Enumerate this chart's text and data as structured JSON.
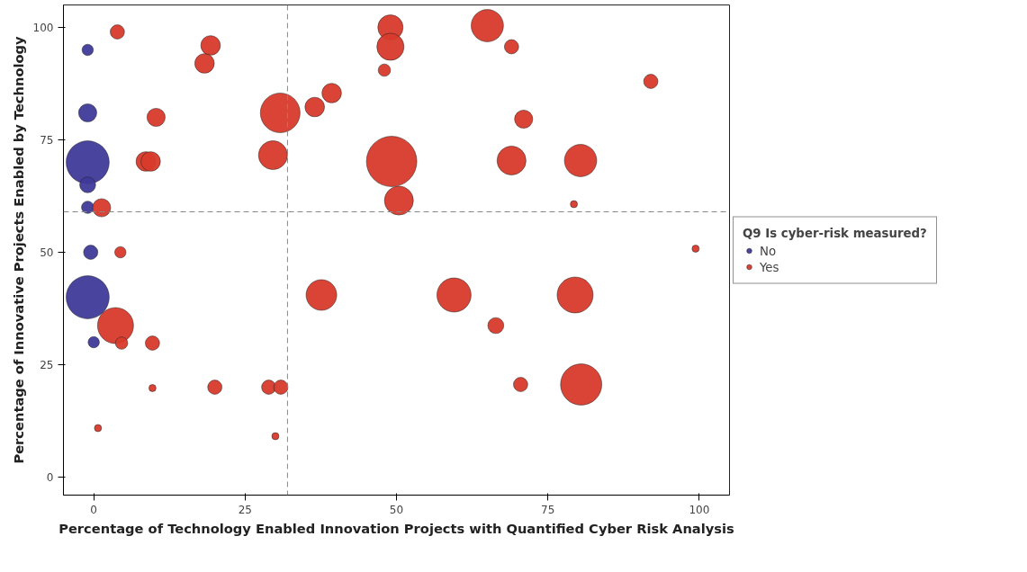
{
  "chart_data": {
    "type": "bubble",
    "xlabel": "Percentage of Technology Enabled Innovation Projects with Quantified Cyber Risk Analysis",
    "ylabel": "Percentage of Innovative Projects Enabled by Technology",
    "legend_title": "Q9 Is cyber-risk measured?",
    "legend": "right",
    "grid": false,
    "marker": "circle",
    "xlim": [
      -5,
      105
    ],
    "ylim": [
      -4,
      105
    ],
    "xticks": [
      0,
      25,
      50,
      75,
      100
    ],
    "yticks": [
      0,
      25,
      50,
      75,
      100
    ],
    "ref_lines": [
      {
        "axis": "x",
        "value": 32,
        "line_style": "dashed",
        "color": "#888888"
      },
      {
        "axis": "y",
        "value": 59,
        "line_style": "dashed",
        "color": "#888888"
      }
    ],
    "series": [
      {
        "name": "No",
        "color": "#3f3a99",
        "x": [
          -1,
          -1,
          -1,
          -1,
          -1,
          -0.5,
          -1,
          0
        ],
        "values": [
          95,
          81,
          70,
          65,
          60,
          50,
          40,
          30
        ],
        "sizes": [
          0.05,
          0.13,
          0.73,
          0.1,
          0.06,
          0.08,
          0.73,
          0.05
        ]
      },
      {
        "name": "Yes",
        "color": "#d83a2b",
        "x": [
          3.9,
          19.3,
          18.3,
          49,
          49,
          65,
          69,
          48,
          92,
          30.8,
          36.5,
          39.3,
          10.3,
          71,
          29.6,
          49.2,
          69,
          80.4,
          8.6,
          9.4,
          1.3,
          50.4,
          79.3,
          4.4,
          99.4,
          37.6,
          59.5,
          79.5,
          3.6,
          4.6,
          9.7,
          66.4,
          20,
          28.9,
          30.9,
          70.5,
          80.5,
          9.7,
          0.7,
          30
        ],
        "values": [
          99,
          96,
          92,
          100,
          95.7,
          100.4,
          95.7,
          90.5,
          88,
          81,
          82.3,
          85.4,
          80,
          79.6,
          71.6,
          70.2,
          70.4,
          70.4,
          70.2,
          70.2,
          59.9,
          61.5,
          60.7,
          50,
          50.8,
          40.5,
          40.5,
          40.5,
          33.7,
          29.8,
          29.8,
          33.7,
          20,
          20,
          20,
          20.6,
          20.6,
          19.8,
          10.9,
          9.1
        ],
        "sizes": [
          0.08,
          0.15,
          0.15,
          0.25,
          0.29,
          0.41,
          0.08,
          0.06,
          0.08,
          0.62,
          0.15,
          0.15,
          0.13,
          0.13,
          0.33,
          1,
          0.33,
          0.41,
          0.15,
          0.15,
          0.13,
          0.33,
          0.02,
          0.05,
          0.02,
          0.37,
          0.46,
          0.51,
          0.51,
          0.06,
          0.08,
          0.1,
          0.08,
          0.08,
          0.08,
          0.08,
          0.67,
          0.02,
          0.02,
          0.02
        ]
      }
    ]
  }
}
